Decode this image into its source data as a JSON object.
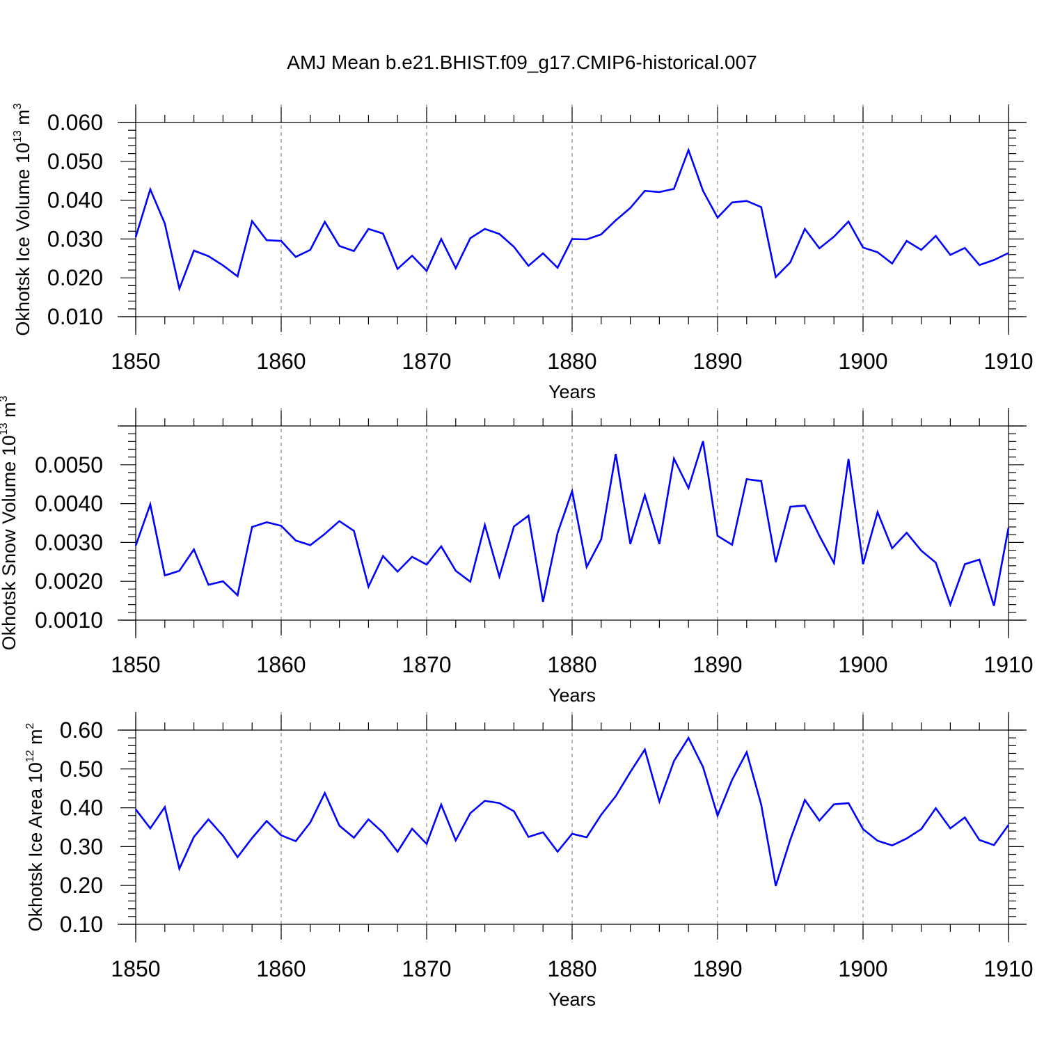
{
  "figure_title": "AMJ Mean b.e21.BHIST.f09_g17.CMIP6-historical.007",
  "colors": {
    "series": "#0000ff",
    "grid": "#888888",
    "axis": "#000000"
  },
  "chart_data": [
    {
      "type": "line",
      "title": "AMJ Mean b.e21.BHIST.f09_g17.CMIP6-historical.007",
      "xlabel": "Years",
      "ylabel_main": "Okhotsk Ice Volume 10",
      "ylabel_sup": "13",
      "ylabel_unit": "m",
      "ylabel_unit_sup": "3",
      "xlim": [
        1850,
        1910
      ],
      "ylim": [
        0.01,
        0.06
      ],
      "xticks": [
        1850,
        1860,
        1870,
        1880,
        1890,
        1900,
        1910
      ],
      "xtick_labels": [
        "1850",
        "1860",
        "1870",
        "1880",
        "1890",
        "1900",
        "1910"
      ],
      "yticks": [
        0.01,
        0.02,
        0.03,
        0.04,
        0.05,
        0.06
      ],
      "ytick_labels": [
        "0.010",
        "0.020",
        "0.030",
        "0.040",
        "0.050",
        "0.060"
      ],
      "x_start": 1850,
      "series": [
        {
          "name": "Okhotsk Ice Volume",
          "values": [
            0.0305,
            0.0428,
            0.034,
            0.0172,
            0.027,
            0.0256,
            0.0232,
            0.0204,
            0.0346,
            0.0297,
            0.0295,
            0.0254,
            0.0272,
            0.0344,
            0.0282,
            0.0269,
            0.0326,
            0.0314,
            0.0223,
            0.0257,
            0.0218,
            0.03,
            0.0225,
            0.0302,
            0.0326,
            0.0313,
            0.028,
            0.0231,
            0.0263,
            0.0226,
            0.03,
            0.0299,
            0.0312,
            0.0348,
            0.038,
            0.0424,
            0.0421,
            0.0429,
            0.0529,
            0.0424,
            0.0355,
            0.0394,
            0.0398,
            0.0382,
            0.0202,
            0.024,
            0.0326,
            0.0276,
            0.0306,
            0.0345,
            0.0278,
            0.0266,
            0.0237,
            0.0295,
            0.0272,
            0.0308,
            0.0259,
            0.0277,
            0.0233,
            0.0246,
            0.0264
          ]
        }
      ]
    },
    {
      "type": "line",
      "xlabel": "Years",
      "ylabel_main": "Okhotsk Snow Volume 10",
      "ylabel_sup": "13",
      "ylabel_unit": "m",
      "ylabel_unit_sup": "3",
      "xlim": [
        1850,
        1910
      ],
      "ylim": [
        0.001,
        0.006
      ],
      "xticks": [
        1850,
        1860,
        1870,
        1880,
        1890,
        1900,
        1910
      ],
      "xtick_labels": [
        "1850",
        "1860",
        "1870",
        "1880",
        "1890",
        "1900",
        "1910"
      ],
      "yticks": [
        0.001,
        0.002,
        0.003,
        0.004,
        0.005
      ],
      "ytick_labels": [
        "0.0010",
        "0.0020",
        "0.0030",
        "0.0040",
        "0.0050"
      ],
      "x_start": 1850,
      "series": [
        {
          "name": "Okhotsk Snow Volume",
          "values": [
            0.00292,
            0.00398,
            0.00215,
            0.00227,
            0.00282,
            0.00191,
            0.002,
            0.00164,
            0.0034,
            0.00352,
            0.00343,
            0.00305,
            0.00293,
            0.00322,
            0.00355,
            0.0033,
            0.00186,
            0.00265,
            0.00225,
            0.00263,
            0.00243,
            0.0029,
            0.00227,
            0.00199,
            0.00345,
            0.00212,
            0.00341,
            0.00369,
            0.00147,
            0.00324,
            0.00432,
            0.00237,
            0.00308,
            0.00528,
            0.00296,
            0.00422,
            0.00296,
            0.00516,
            0.0044,
            0.00561,
            0.00317,
            0.00294,
            0.00463,
            0.00458,
            0.00249,
            0.00392,
            0.00395,
            0.00317,
            0.00247,
            0.00515,
            0.00244,
            0.00378,
            0.00285,
            0.00325,
            0.00279,
            0.00248,
            0.0014,
            0.00244,
            0.00256,
            0.00137,
            0.00338
          ]
        }
      ]
    },
    {
      "type": "line",
      "xlabel": "Years",
      "ylabel_main": "Okhotsk Ice Area 10",
      "ylabel_sup": "12",
      "ylabel_unit": "m",
      "ylabel_unit_sup": "2",
      "xlim": [
        1850,
        1910
      ],
      "ylim": [
        0.1,
        0.6
      ],
      "xticks": [
        1850,
        1860,
        1870,
        1880,
        1890,
        1900,
        1910
      ],
      "xtick_labels": [
        "1850",
        "1860",
        "1870",
        "1880",
        "1890",
        "1900",
        "1910"
      ],
      "yticks": [
        0.1,
        0.2,
        0.3,
        0.4,
        0.5,
        0.6
      ],
      "ytick_labels": [
        "0.10",
        "0.20",
        "0.30",
        "0.40",
        "0.50",
        "0.60"
      ],
      "x_start": 1850,
      "series": [
        {
          "name": "Okhotsk Ice Area",
          "values": [
            0.396,
            0.347,
            0.402,
            0.243,
            0.325,
            0.37,
            0.328,
            0.273,
            0.322,
            0.366,
            0.329,
            0.314,
            0.362,
            0.438,
            0.354,
            0.323,
            0.37,
            0.336,
            0.287,
            0.346,
            0.307,
            0.408,
            0.316,
            0.386,
            0.418,
            0.412,
            0.391,
            0.325,
            0.337,
            0.287,
            0.333,
            0.324,
            0.382,
            0.43,
            0.492,
            0.55,
            0.416,
            0.52,
            0.58,
            0.505,
            0.38,
            0.472,
            0.543,
            0.408,
            0.199,
            0.318,
            0.42,
            0.367,
            0.409,
            0.412,
            0.345,
            0.315,
            0.303,
            0.321,
            0.345,
            0.399,
            0.347,
            0.375,
            0.317,
            0.304,
            0.356
          ]
        }
      ]
    }
  ]
}
